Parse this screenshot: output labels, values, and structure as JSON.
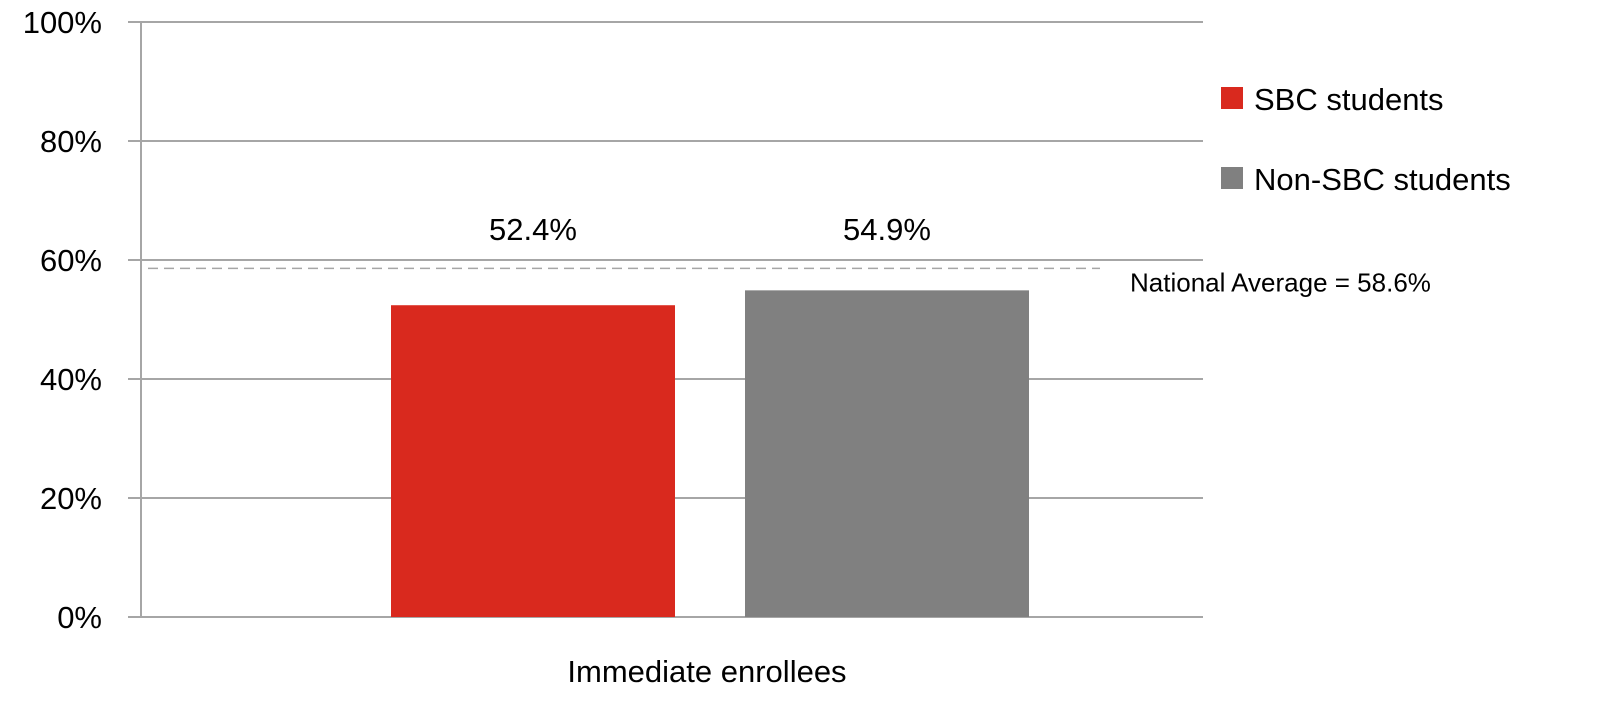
{
  "chart_data": {
    "type": "bar",
    "title": "",
    "xlabel": "",
    "ylabel": "",
    "categories": [
      "Immediate enrollees"
    ],
    "series": [
      {
        "name": "SBC students",
        "values": [
          52.4
        ],
        "color": "#d9291e",
        "value_label": "52.4%"
      },
      {
        "name": "Non-SBC students",
        "values": [
          54.9
        ],
        "color": "#808080",
        "value_label": "54.9%"
      }
    ],
    "ylim": [
      0,
      100
    ],
    "y_ticks": [
      0,
      20,
      40,
      60,
      80,
      100
    ],
    "y_tick_labels": [
      "0%",
      "20%",
      "40%",
      "60%",
      "80%",
      "100%"
    ],
    "grid": true,
    "gridline_color": "#a6a6a6",
    "legend_position": "right",
    "reference_line": {
      "value": 58.6,
      "label": "National Average = 58.6%",
      "style": "dashed",
      "color": "#a6a6a6"
    }
  }
}
